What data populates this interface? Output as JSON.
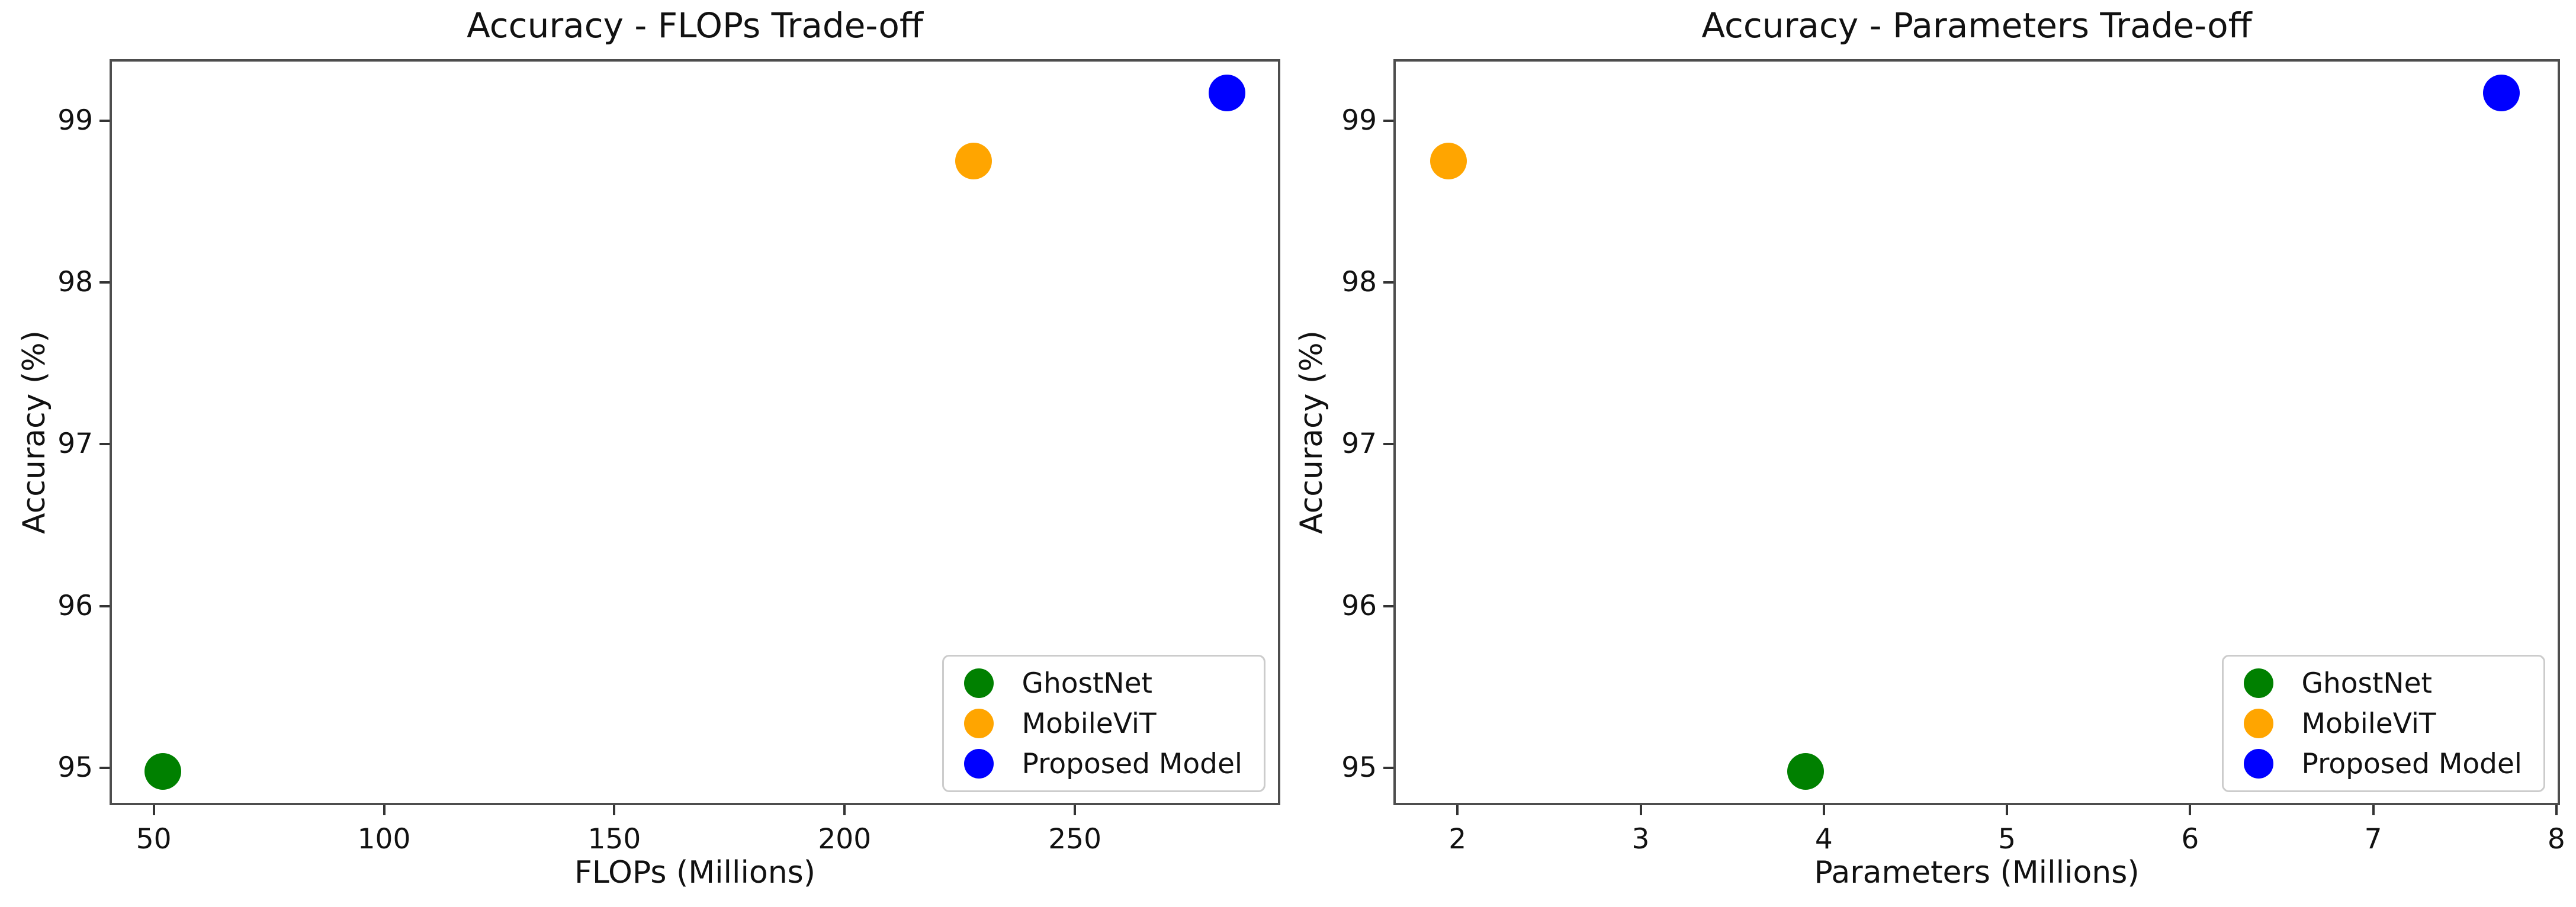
{
  "figure": {
    "background": "#ffffff",
    "spine_color": "#4d4d4d"
  },
  "chart_data": [
    {
      "type": "scatter",
      "title": "Accuracy - FLOPs Trade-off",
      "xlabel": "FLOPs (Millions)",
      "ylabel": "Accuracy (%)",
      "xlim": [
        40.4,
        294.6
      ],
      "ylim": [
        94.77,
        99.38
      ],
      "xticks": [
        50,
        100,
        150,
        200,
        250
      ],
      "yticks": [
        95,
        96,
        97,
        98,
        99
      ],
      "grid": false,
      "legend_position": "lower right",
      "series": [
        {
          "name": "GhostNet",
          "color": "#008000",
          "x": 52,
          "y": 94.98
        },
        {
          "name": "MobileViT",
          "color": "#FFA500",
          "x": 228,
          "y": 98.75
        },
        {
          "name": "Proposed Model",
          "color": "#0000FF",
          "x": 283,
          "y": 99.17
        }
      ]
    },
    {
      "type": "scatter",
      "title": "Accuracy - Parameters Trade-off",
      "xlabel": "Parameters (Millions)",
      "ylabel": "Accuracy (%)",
      "xlim": [
        1.65,
        8.02
      ],
      "ylim": [
        94.77,
        99.38
      ],
      "xticks": [
        2,
        3,
        4,
        5,
        6,
        7,
        8
      ],
      "yticks": [
        95,
        96,
        97,
        98,
        99
      ],
      "grid": false,
      "legend_position": "lower right",
      "series": [
        {
          "name": "GhostNet",
          "color": "#008000",
          "x": 3.9,
          "y": 94.98
        },
        {
          "name": "MobileViT",
          "color": "#FFA500",
          "x": 1.95,
          "y": 98.75
        },
        {
          "name": "Proposed Model",
          "color": "#0000FF",
          "x": 7.7,
          "y": 99.17
        }
      ]
    }
  ]
}
